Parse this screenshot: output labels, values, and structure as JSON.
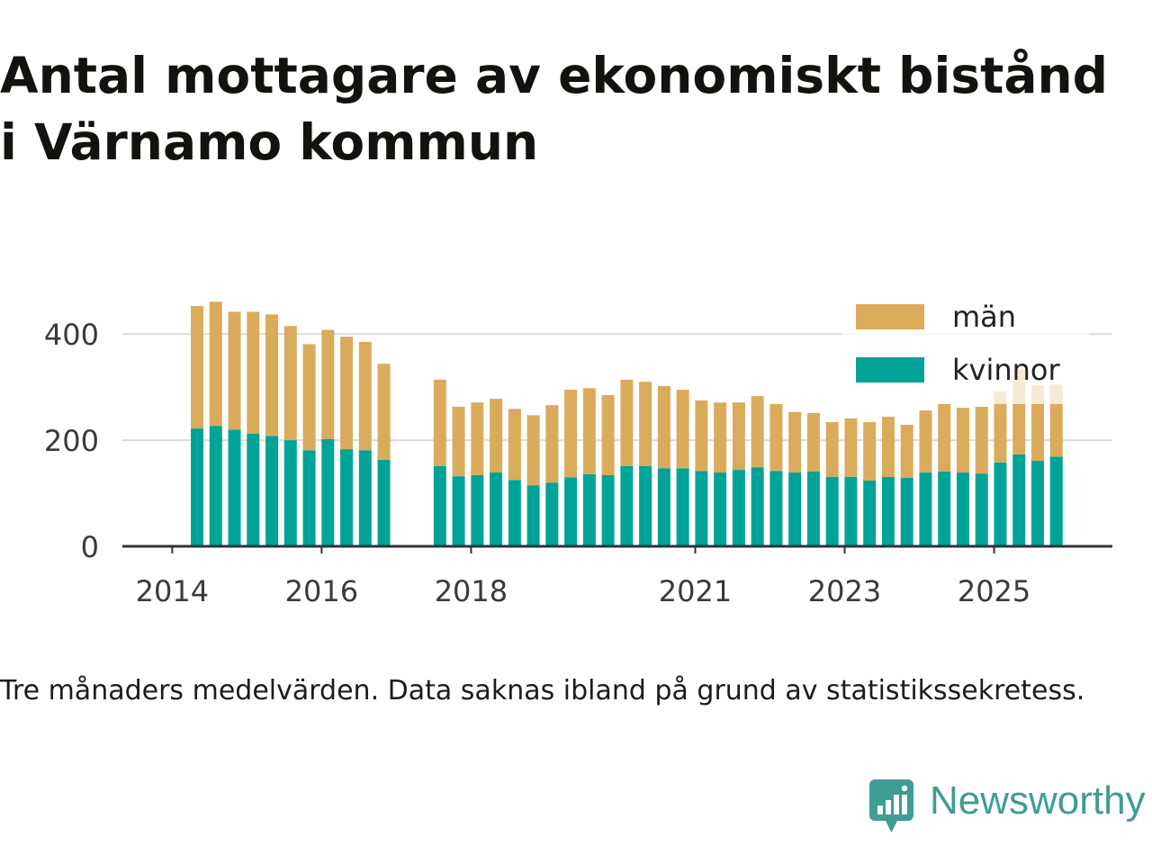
{
  "chart_data": {
    "type": "bar",
    "stacked": true,
    "title": [
      "Antal mottagare av ekonomiskt bistånd",
      "i Värnamo kommun"
    ],
    "x": [
      "2014-05",
      "2014-08",
      "2014-11",
      "2015-02",
      "2015-05",
      "2015-08",
      "2015-11",
      "2016-02",
      "2016-05",
      "2016-08",
      "2016-11",
      "2017-08",
      "2017-11",
      "2018-02",
      "2018-05",
      "2018-08",
      "2018-11",
      "2019-02",
      "2019-05",
      "2019-08",
      "2019-11",
      "2020-02",
      "2020-05",
      "2020-08",
      "2020-11",
      "2021-02",
      "2021-05",
      "2021-08",
      "2021-11",
      "2022-02",
      "2022-05",
      "2022-08",
      "2022-11",
      "2023-02",
      "2023-05",
      "2023-08",
      "2023-11",
      "2024-02",
      "2024-05",
      "2024-08",
      "2024-11",
      "2025-02",
      "2025-05",
      "2025-08",
      "2025-11"
    ],
    "x_ticks": [
      "2014",
      "2016",
      "2018",
      "2021",
      "2023",
      "2025"
    ],
    "xlim": [
      "2013-05",
      "2026-08"
    ],
    "y_ticks": [
      0,
      200,
      400
    ],
    "ylim": [
      0,
      480
    ],
    "grid": "horizontal",
    "legend": "top-right",
    "series": [
      {
        "name": "kvinnor",
        "color": "#00a398",
        "values": [
          222,
          227,
          220,
          212,
          208,
          200,
          181,
          202,
          183,
          181,
          163,
          151,
          132,
          134,
          139,
          125,
          115,
          120,
          130,
          136,
          134,
          151,
          151,
          147,
          147,
          142,
          139,
          144,
          149,
          142,
          139,
          141,
          131,
          131,
          124,
          131,
          129,
          139,
          141,
          139,
          137,
          158,
          173,
          161,
          169
        ]
      },
      {
        "name": "män",
        "color": "#d9ab5b",
        "values": [
          231,
          234,
          222,
          230,
          229,
          215,
          200,
          206,
          212,
          204,
          181,
          163,
          131,
          137,
          139,
          134,
          132,
          146,
          165,
          162,
          151,
          163,
          159,
          155,
          148,
          133,
          132,
          127,
          134,
          126,
          114,
          110,
          103,
          110,
          110,
          113,
          100,
          117,
          127,
          122,
          126,
          134,
          160,
          142,
          136
        ]
      }
    ]
  },
  "footnote": "Tre månaders medelvärden. Data saknas ibland på grund av statistikssekretess.",
  "brand": {
    "name": "Newsworthy",
    "icon": "newsworthy-logo-icon",
    "color": "#3f9d93"
  }
}
